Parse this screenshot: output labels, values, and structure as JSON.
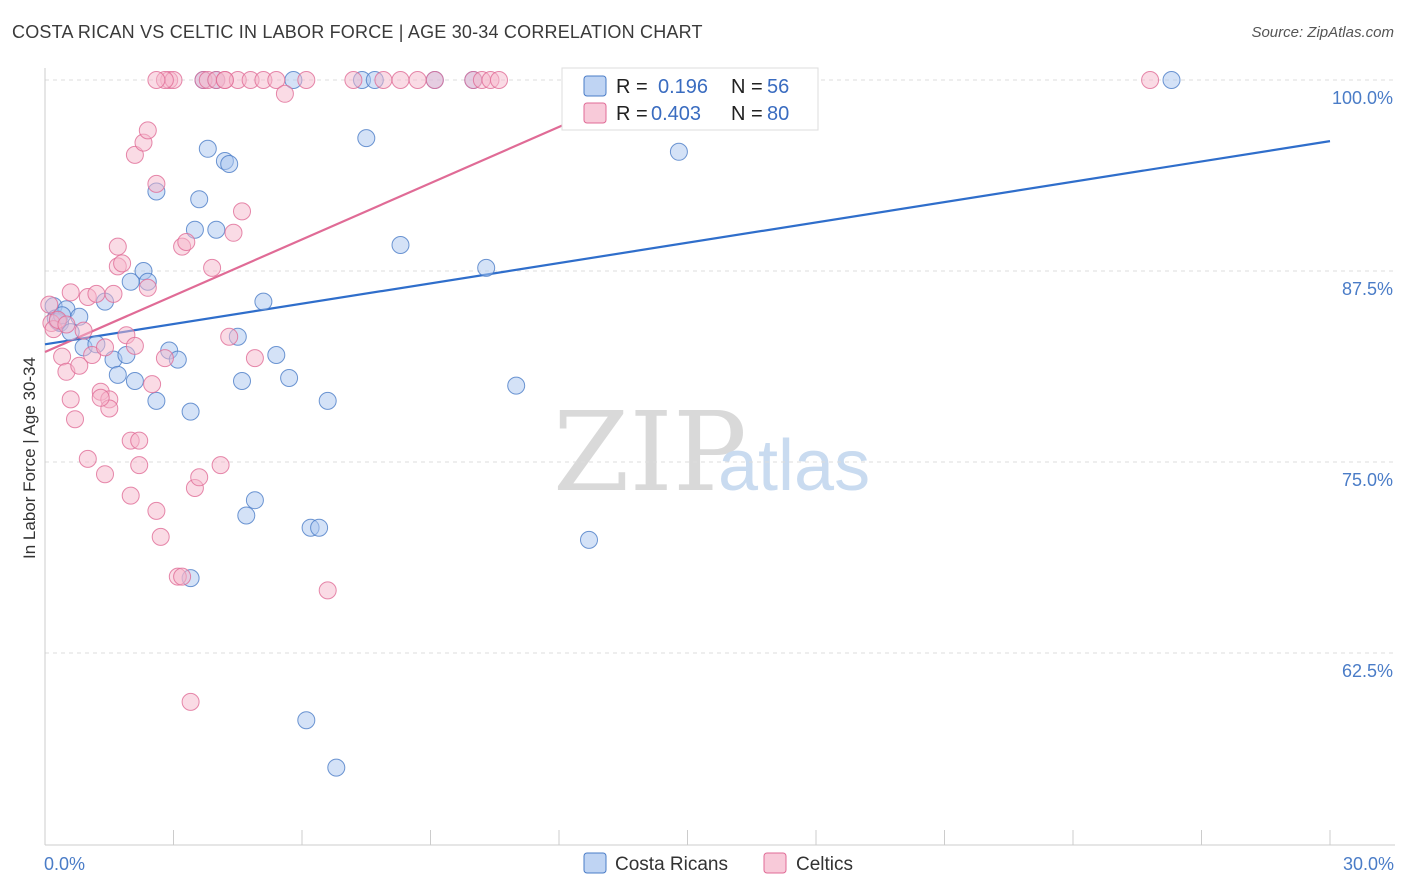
{
  "header": {
    "title": "COSTA RICAN VS CELTIC IN LABOR FORCE | AGE 30-34 CORRELATION CHART",
    "source": "Source: ZipAtlas.com"
  },
  "colors": {
    "blue": "#4a7cc7",
    "blue_fill": "#a9c6ef",
    "blue_line": "#2f6ecb",
    "pink": "#e06b96",
    "pink_fill": "#f5b8cc",
    "pink_line": "#e06b96",
    "grid": "#dddddd"
  },
  "watermark": {
    "zip": "ZIP",
    "atlas": "atlas"
  },
  "legend": {
    "r_label": "R =",
    "n_label": "N =",
    "blue": {
      "r": "0.196",
      "n": "56"
    },
    "pink": {
      "r": "0.403",
      "n": "80"
    }
  },
  "chart_data": {
    "type": "scatter",
    "title": "COSTA RICAN VS CELTIC IN LABOR FORCE | AGE 30-34 CORRELATION CHART",
    "xlabel": "",
    "ylabel": "In Labor Force | Age 30-34",
    "xlim": [
      0,
      30
    ],
    "ylim": [
      50.5,
      102
    ],
    "x_tick_labels": [
      {
        "value": 0,
        "label": "0.0%"
      },
      {
        "value": 30,
        "label": "30.0%"
      }
    ],
    "y_ticks": [
      {
        "value": 100,
        "label": "100.0%"
      },
      {
        "value": 87.5,
        "label": "87.5%"
      },
      {
        "value": 75,
        "label": "75.0%"
      },
      {
        "value": 62.5,
        "label": "62.5%"
      }
    ],
    "x_minor_ticks": [
      0,
      3,
      6,
      9,
      12,
      15,
      18,
      21,
      24,
      27,
      30
    ],
    "series": [
      {
        "name": "Costa Ricans",
        "color": "blue",
        "trend": {
          "x": [
            0,
            30
          ],
          "y": [
            82.7,
            96.0
          ]
        },
        "points": [
          [
            0.2,
            85.2
          ],
          [
            0.25,
            84.4
          ],
          [
            0.35,
            84.1
          ],
          [
            0.5,
            85.0
          ],
          [
            0.6,
            83.5
          ],
          [
            0.8,
            84.5
          ],
          [
            0.9,
            82.5
          ],
          [
            1.2,
            82.7
          ],
          [
            1.4,
            85.5
          ],
          [
            1.6,
            81.7
          ],
          [
            1.7,
            80.7
          ],
          [
            1.9,
            82.0
          ],
          [
            2.0,
            86.8
          ],
          [
            2.1,
            80.3
          ],
          [
            2.3,
            87.5
          ],
          [
            2.4,
            86.8
          ],
          [
            2.6,
            92.7
          ],
          [
            2.6,
            79.0
          ],
          [
            2.9,
            82.3
          ],
          [
            3.1,
            81.7
          ],
          [
            3.4,
            67.4
          ],
          [
            3.4,
            78.3
          ],
          [
            3.5,
            90.2
          ],
          [
            3.6,
            92.2
          ],
          [
            3.7,
            100
          ],
          [
            3.8,
            95.5
          ],
          [
            4.0,
            90.2
          ],
          [
            4.0,
            100
          ],
          [
            4.2,
            94.7
          ],
          [
            4.3,
            94.5
          ],
          [
            4.5,
            83.2
          ],
          [
            4.6,
            80.3
          ],
          [
            4.7,
            71.5
          ],
          [
            4.9,
            72.5
          ],
          [
            5.1,
            85.5
          ],
          [
            5.4,
            82.0
          ],
          [
            5.7,
            80.5
          ],
          [
            5.8,
            100
          ],
          [
            6.1,
            58.1
          ],
          [
            6.2,
            70.7
          ],
          [
            6.4,
            70.7
          ],
          [
            6.6,
            79.0
          ],
          [
            6.8,
            55.0
          ],
          [
            7.4,
            100
          ],
          [
            7.5,
            96.2
          ],
          [
            7.7,
            100
          ],
          [
            8.3,
            89.2
          ],
          [
            9.1,
            100
          ],
          [
            10.0,
            100
          ],
          [
            10.3,
            87.7
          ],
          [
            11.0,
            80.0
          ],
          [
            12.7,
            69.9
          ],
          [
            14.8,
            95.3
          ],
          [
            26.3,
            100
          ],
          [
            0.3,
            84.2
          ],
          [
            0.4,
            84.6
          ]
        ]
      },
      {
        "name": "Celtics",
        "color": "pink",
        "trend": {
          "x": [
            0,
            14.5
          ],
          "y": [
            82.2,
            100
          ]
        },
        "points": [
          [
            0.1,
            85.3
          ],
          [
            0.15,
            84.1
          ],
          [
            0.2,
            83.7
          ],
          [
            0.3,
            84.3
          ],
          [
            0.4,
            81.9
          ],
          [
            0.5,
            80.9
          ],
          [
            0.6,
            79.1
          ],
          [
            0.6,
            86.1
          ],
          [
            0.7,
            77.8
          ],
          [
            0.8,
            81.3
          ],
          [
            0.9,
            83.6
          ],
          [
            1.0,
            85.8
          ],
          [
            1.0,
            75.2
          ],
          [
            1.1,
            82.0
          ],
          [
            1.2,
            86.0
          ],
          [
            1.3,
            79.6
          ],
          [
            1.4,
            74.2
          ],
          [
            1.4,
            82.5
          ],
          [
            1.5,
            79.1
          ],
          [
            1.5,
            78.5
          ],
          [
            1.6,
            86.0
          ],
          [
            1.7,
            87.8
          ],
          [
            1.7,
            89.1
          ],
          [
            1.8,
            88.0
          ],
          [
            1.9,
            83.3
          ],
          [
            2.0,
            76.4
          ],
          [
            2.0,
            72.8
          ],
          [
            2.1,
            95.1
          ],
          [
            2.1,
            82.6
          ],
          [
            2.2,
            76.4
          ],
          [
            2.2,
            74.8
          ],
          [
            2.3,
            95.9
          ],
          [
            2.4,
            96.7
          ],
          [
            2.4,
            86.4
          ],
          [
            2.5,
            80.1
          ],
          [
            2.6,
            93.2
          ],
          [
            2.6,
            71.8
          ],
          [
            2.7,
            70.1
          ],
          [
            2.8,
            81.8
          ],
          [
            2.9,
            100
          ],
          [
            3.0,
            100
          ],
          [
            3.1,
            67.5
          ],
          [
            3.2,
            89.1
          ],
          [
            3.3,
            89.4
          ],
          [
            3.4,
            59.3
          ],
          [
            3.5,
            73.3
          ],
          [
            3.6,
            74.0
          ],
          [
            3.7,
            100
          ],
          [
            3.8,
            100
          ],
          [
            3.9,
            87.7
          ],
          [
            4.0,
            100
          ],
          [
            4.1,
            74.8
          ],
          [
            4.2,
            100
          ],
          [
            4.3,
            83.2
          ],
          [
            4.4,
            90.0
          ],
          [
            4.5,
            100
          ],
          [
            4.6,
            91.4
          ],
          [
            4.8,
            100
          ],
          [
            4.9,
            81.8
          ],
          [
            5.1,
            100
          ],
          [
            5.4,
            100
          ],
          [
            5.6,
            99.1
          ],
          [
            6.1,
            100
          ],
          [
            6.6,
            66.6
          ],
          [
            7.2,
            100
          ],
          [
            7.9,
            100
          ],
          [
            8.3,
            100
          ],
          [
            8.7,
            100
          ],
          [
            9.1,
            100
          ],
          [
            10.0,
            100
          ],
          [
            10.2,
            100
          ],
          [
            10.4,
            100
          ],
          [
            10.6,
            100
          ],
          [
            25.8,
            100
          ],
          [
            2.8,
            100
          ],
          [
            3.2,
            67.5
          ],
          [
            1.3,
            79.2
          ],
          [
            0.5,
            84.0
          ],
          [
            2.6,
            100
          ],
          [
            4.2,
            100
          ]
        ]
      }
    ],
    "legend_entries": [
      "Costa Ricans",
      "Celtics"
    ]
  }
}
